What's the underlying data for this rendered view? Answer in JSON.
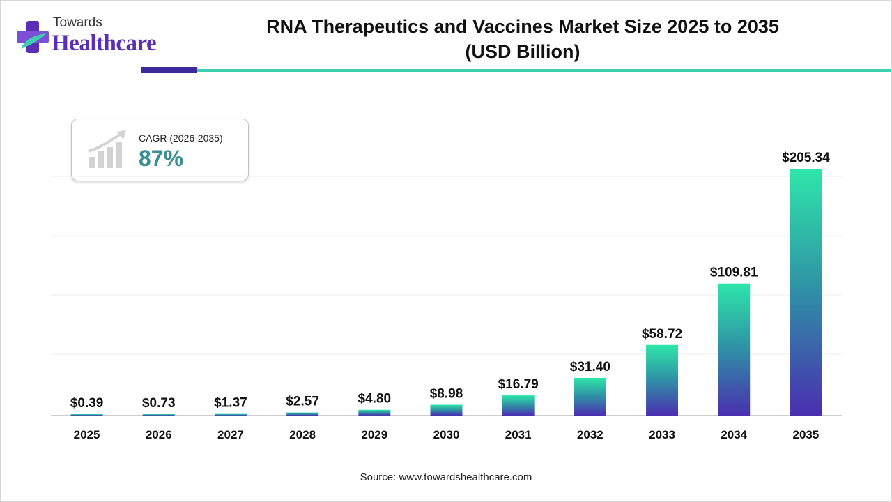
{
  "brand": {
    "line1": "Towards",
    "line2": "Healthcare"
  },
  "title": {
    "line1": "RNA Therapeutics and Vaccines Market Size 2025 to 2035",
    "line2": "(USD Billion)"
  },
  "cagr": {
    "label": "CAGR (2026-2035)",
    "value": "87%"
  },
  "source": "Source: www.towardshealthcare.com",
  "colors": {
    "brand_purple": "#5b2fb5",
    "accent_teal": "#3ccfb0",
    "bar_top": "#2ee6a8",
    "bar_bottom": "#4a2fb0",
    "cagr_text": "#3a8f94"
  },
  "chart_data": {
    "type": "bar",
    "categories": [
      "2025",
      "2026",
      "2027",
      "2028",
      "2029",
      "2030",
      "2031",
      "2032",
      "2033",
      "2034",
      "2035"
    ],
    "values": [
      0.39,
      0.73,
      1.37,
      2.57,
      4.8,
      8.98,
      16.79,
      31.4,
      58.72,
      109.81,
      205.34
    ],
    "value_labels": [
      "$0.39",
      "$0.73",
      "$1.37",
      "$2.57",
      "$4.80",
      "$8.98",
      "$16.79",
      "$31.40",
      "$58.72",
      "$109.81",
      "$205.34"
    ],
    "title": "RNA Therapeutics and Vaccines Market Size 2025 to 2035 (USD Billion)",
    "xlabel": "",
    "ylabel": "",
    "grid": true,
    "legend": "none"
  }
}
